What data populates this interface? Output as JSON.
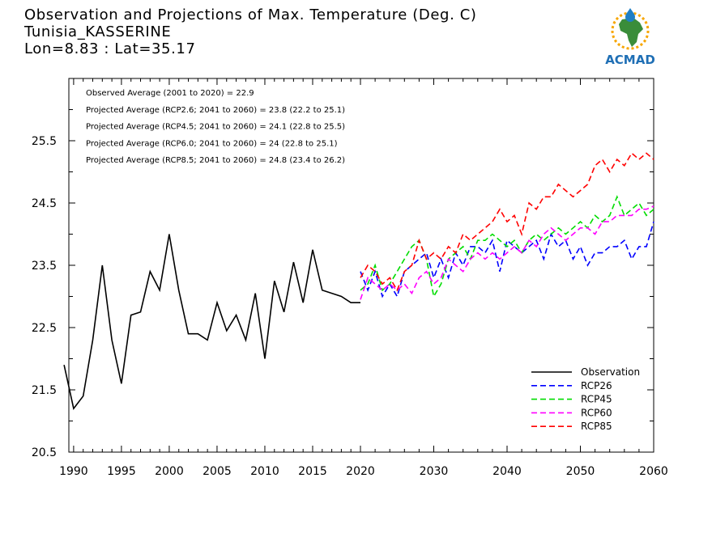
{
  "header": {
    "title_line1": "Observation and Projections of Max. Temperature (Deg. C)",
    "title_line2": "Tunisia_KASSERINE",
    "title_line3": "Lon=8.83 : Lat=35.17"
  },
  "logo": {
    "text": "ACMAD",
    "icon": "africa-map-logo",
    "colors": {
      "ring": "#f7a600",
      "map": "#3a8d3a",
      "drop": "#1f7fc4",
      "text": "#1f6fb5"
    }
  },
  "chart_data": {
    "type": "line",
    "title": "Observation and Projections of Max. Temperature (Deg. C)",
    "xlabel": "",
    "ylabel": "",
    "xlim": [
      1989.5,
      2060
    ],
    "ylim": [
      20.5,
      26.5
    ],
    "y_ticks": [
      20.5,
      21.5,
      22.5,
      23.5,
      24.5,
      25.5
    ],
    "y_tick_labels": [
      "20.5",
      "21.5",
      "22.5",
      "23.5",
      "24.5",
      "25.5"
    ],
    "x_ticks": [
      1990,
      1995,
      2000,
      2005,
      2010,
      2015,
      2020,
      2030,
      2040,
      2050,
      2060
    ],
    "x_tick_labels": [
      "1990",
      "1995",
      "2000",
      "2005",
      "2010",
      "2015",
      "2020",
      "2030",
      "2040",
      "2050",
      "2060"
    ],
    "grid": false,
    "legend_position": "bottom-right",
    "annotations": [
      "Observed Average (2001 to 2020) = 22.9",
      "Projected Average (RCP2.6; 2041 to 2060) = 23.8 (22.2 to 25.1)",
      "Projected Average (RCP4.5; 2041 to 2060) = 24.1 (22.8 to 25.5)",
      "Projected Average (RCP6.0; 2041 to 2060) = 24 (22.8 to 25.1)",
      "Projected Average (RCP8.5; 2041 to 2060) = 24.8 (23.4 to 26.2)"
    ],
    "series": [
      {
        "name": "Observation",
        "color": "#000000",
        "dash": "solid",
        "x": [
          1989,
          1990,
          1991,
          1992,
          1993,
          1994,
          1995,
          1996,
          1997,
          1998,
          1999,
          2000,
          2001,
          2002,
          2003,
          2004,
          2005,
          2006,
          2007,
          2008,
          2009,
          2010,
          2011,
          2012,
          2013,
          2014,
          2015,
          2016,
          2017,
          2018,
          2019,
          2020
        ],
        "values": [
          21.9,
          21.2,
          21.4,
          22.3,
          23.5,
          22.3,
          21.6,
          22.7,
          22.75,
          23.4,
          23.1,
          24.0,
          23.1,
          22.4,
          22.4,
          22.3,
          22.9,
          22.45,
          22.7,
          22.3,
          23.05,
          22.0,
          23.25,
          22.75,
          23.55,
          22.9,
          23.75,
          23.1,
          23.05,
          23.0,
          22.9,
          22.9
        ]
      },
      {
        "name": "RCP26",
        "color": "#0000ff",
        "dash": "dashed",
        "x": [
          2020,
          2021,
          2022,
          2023,
          2024,
          2025,
          2026,
          2027,
          2028,
          2029,
          2030,
          2031,
          2032,
          2033,
          2034,
          2035,
          2036,
          2037,
          2038,
          2039,
          2040,
          2041,
          2042,
          2043,
          2044,
          2045,
          2046,
          2047,
          2048,
          2049,
          2050,
          2051,
          2052,
          2053,
          2054,
          2055,
          2056,
          2057,
          2058,
          2059,
          2060
        ],
        "values": [
          23.4,
          23.1,
          23.4,
          23.0,
          23.2,
          23.0,
          23.4,
          23.5,
          23.6,
          23.7,
          23.3,
          23.6,
          23.3,
          23.7,
          23.5,
          23.8,
          23.8,
          23.7,
          23.9,
          23.4,
          23.9,
          23.8,
          23.7,
          23.8,
          23.9,
          23.6,
          24.0,
          23.8,
          23.9,
          23.6,
          23.8,
          23.5,
          23.7,
          23.7,
          23.8,
          23.8,
          23.9,
          23.6,
          23.8,
          23.8,
          24.2
        ]
      },
      {
        "name": "RCP45",
        "color": "#00dd00",
        "dash": "dashed",
        "x": [
          2020,
          2021,
          2022,
          2023,
          2024,
          2025,
          2026,
          2027,
          2028,
          2029,
          2030,
          2031,
          2032,
          2033,
          2034,
          2035,
          2036,
          2037,
          2038,
          2039,
          2040,
          2041,
          2042,
          2043,
          2044,
          2045,
          2046,
          2047,
          2048,
          2049,
          2050,
          2051,
          2052,
          2053,
          2054,
          2055,
          2056,
          2057,
          2058,
          2059,
          2060
        ],
        "values": [
          23.1,
          23.2,
          23.5,
          23.1,
          23.2,
          23.4,
          23.6,
          23.8,
          23.9,
          23.6,
          23.0,
          23.2,
          23.6,
          23.7,
          23.8,
          23.6,
          23.9,
          23.9,
          24.0,
          23.9,
          23.8,
          23.9,
          23.7,
          23.9,
          24.0,
          23.9,
          24.0,
          24.1,
          24.0,
          24.1,
          24.2,
          24.1,
          24.3,
          24.2,
          24.3,
          24.6,
          24.3,
          24.4,
          24.5,
          24.3,
          24.4
        ]
      },
      {
        "name": "RCP60",
        "color": "#ff00ff",
        "dash": "dashed",
        "x": [
          2020,
          2021,
          2022,
          2023,
          2024,
          2025,
          2026,
          2027,
          2028,
          2029,
          2030,
          2031,
          2032,
          2033,
          2034,
          2035,
          2036,
          2037,
          2038,
          2039,
          2040,
          2041,
          2042,
          2043,
          2044,
          2045,
          2046,
          2047,
          2048,
          2049,
          2050,
          2051,
          2052,
          2053,
          2054,
          2055,
          2056,
          2057,
          2058,
          2059,
          2060
        ],
        "values": [
          22.95,
          23.3,
          23.2,
          23.1,
          23.2,
          23.1,
          23.2,
          23.05,
          23.3,
          23.4,
          23.2,
          23.3,
          23.6,
          23.5,
          23.4,
          23.6,
          23.7,
          23.6,
          23.7,
          23.6,
          23.7,
          23.8,
          23.7,
          23.9,
          23.8,
          24.0,
          24.1,
          24.0,
          23.9,
          24.0,
          24.1,
          24.1,
          24.0,
          24.2,
          24.2,
          24.3,
          24.3,
          24.3,
          24.4,
          24.4,
          24.45
        ]
      },
      {
        "name": "RCP85",
        "color": "#ff0000",
        "dash": "dashed",
        "x": [
          2020,
          2021,
          2022,
          2023,
          2024,
          2025,
          2026,
          2027,
          2028,
          2029,
          2030,
          2031,
          2032,
          2033,
          2034,
          2035,
          2036,
          2037,
          2038,
          2039,
          2040,
          2041,
          2042,
          2043,
          2044,
          2045,
          2046,
          2047,
          2048,
          2049,
          2050,
          2051,
          2052,
          2053,
          2054,
          2055,
          2056,
          2057,
          2058,
          2059,
          2060
        ],
        "values": [
          23.3,
          23.5,
          23.4,
          23.2,
          23.3,
          23.1,
          23.4,
          23.5,
          23.9,
          23.6,
          23.7,
          23.6,
          23.8,
          23.7,
          24.0,
          23.9,
          24.0,
          24.1,
          24.2,
          24.4,
          24.2,
          24.3,
          24.0,
          24.5,
          24.4,
          24.6,
          24.6,
          24.8,
          24.7,
          24.6,
          24.7,
          24.8,
          25.1,
          25.2,
          25.0,
          25.2,
          25.1,
          25.3,
          25.2,
          25.3,
          25.2
        ]
      }
    ]
  }
}
